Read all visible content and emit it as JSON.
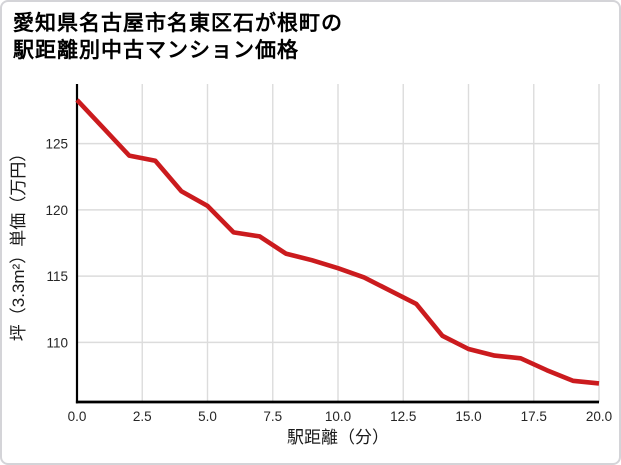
{
  "page": {
    "background": "#ffffff",
    "card_border_color": "#d4d4d8"
  },
  "chart_data": {
    "type": "line",
    "title_lines": [
      "愛知県名古屋市名東区石が根町の",
      "駅距離別中古マンション価格"
    ],
    "xlabel": "駅距離（分）",
    "ylabel": "坪（3.3m²）単価（万円）",
    "x": [
      0,
      1,
      2,
      3,
      4,
      5,
      6,
      7,
      8,
      9,
      10,
      11,
      12,
      13,
      14,
      15,
      16,
      17,
      18,
      19,
      20
    ],
    "values": [
      128.3,
      126.2,
      124.1,
      123.7,
      121.4,
      120.3,
      118.3,
      118.0,
      116.7,
      116.2,
      115.6,
      114.9,
      113.9,
      112.9,
      110.5,
      109.5,
      109.0,
      108.8,
      107.9,
      107.1,
      106.9
    ],
    "xlim": [
      0,
      20
    ],
    "ylim": [
      105.5,
      129.5
    ],
    "x_ticks": [
      0,
      2.5,
      5,
      7.5,
      10,
      12.5,
      15,
      17.5,
      20
    ],
    "x_tick_labels": [
      "0.0",
      "2.5",
      "5.0",
      "7.5",
      "10.0",
      "12.5",
      "15.0",
      "17.5",
      "20.0"
    ],
    "y_ticks": [
      110,
      115,
      120,
      125
    ],
    "y_tick_labels": [
      "110",
      "115",
      "120",
      "125"
    ],
    "grid": true,
    "legend": "none",
    "colors": {
      "line": "#cb1b1e",
      "grid": "#dcdcdc",
      "axis": "#000000",
      "tick_label": "#262626",
      "axis_label": "#1a1a1a",
      "title": "#000000"
    }
  }
}
